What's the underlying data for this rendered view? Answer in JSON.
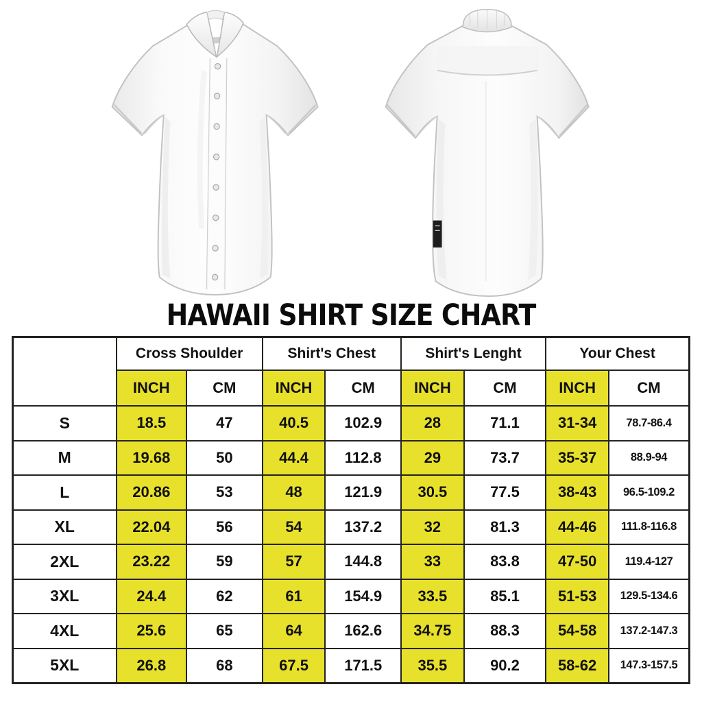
{
  "title": "HAWAII SHIRT SIZE CHART",
  "shirts": {
    "front": "white-short-sleeve-shirt-front-view",
    "back": "white-short-sleeve-shirt-back-view"
  },
  "colors": {
    "highlight_yellow": "#e8e12b",
    "grid_border": "#24231f",
    "text": "#111111"
  },
  "chart_data": {
    "type": "table",
    "title": "HAWAII SHIRT SIZE CHART",
    "column_groups": [
      "Cross Shoulder",
      "Shirt's Chest",
      "Shirt's Lenght",
      "Your Chest"
    ],
    "unit_headers": [
      "INCH",
      "CM"
    ],
    "row_labels": [
      "S",
      "M",
      "L",
      "XL",
      "2XL",
      "3XL",
      "4XL",
      "5XL"
    ],
    "rows": [
      [
        "18.5",
        "47",
        "40.5",
        "102.9",
        "28",
        "71.1",
        "31-34",
        "78.7-86.4"
      ],
      [
        "19.68",
        "50",
        "44.4",
        "112.8",
        "29",
        "73.7",
        "35-37",
        "88.9-94"
      ],
      [
        "20.86",
        "53",
        "48",
        "121.9",
        "30.5",
        "77.5",
        "38-43",
        "96.5-109.2"
      ],
      [
        "22.04",
        "56",
        "54",
        "137.2",
        "32",
        "81.3",
        "44-46",
        "111.8-116.8"
      ],
      [
        "23.22",
        "59",
        "57",
        "144.8",
        "33",
        "83.8",
        "47-50",
        "119.4-127"
      ],
      [
        "24.4",
        "62",
        "61",
        "154.9",
        "33.5",
        "85.1",
        "51-53",
        "129.5-134.6"
      ],
      [
        "25.6",
        "65",
        "64",
        "162.6",
        "34.75",
        "88.3",
        "54-58",
        "137.2-147.3"
      ],
      [
        "26.8",
        "68",
        "67.5",
        "171.5",
        "35.5",
        "90.2",
        "58-62",
        "147.3-157.5"
      ]
    ]
  },
  "table": {
    "groups": [
      {
        "label": "Cross Shoulder"
      },
      {
        "label": "Shirt's Chest"
      },
      {
        "label": "Shirt's Lenght"
      },
      {
        "label": "Your Chest"
      }
    ],
    "unit_headers": {
      "inch": "INCH",
      "cm": "CM"
    },
    "rows": [
      {
        "size": "S",
        "cells": [
          "18.5",
          "47",
          "40.5",
          "102.9",
          "28",
          "71.1",
          "31-34",
          "78.7-86.4"
        ]
      },
      {
        "size": "M",
        "cells": [
          "19.68",
          "50",
          "44.4",
          "112.8",
          "29",
          "73.7",
          "35-37",
          "88.9-94"
        ]
      },
      {
        "size": "L",
        "cells": [
          "20.86",
          "53",
          "48",
          "121.9",
          "30.5",
          "77.5",
          "38-43",
          "96.5-109.2"
        ]
      },
      {
        "size": "XL",
        "cells": [
          "22.04",
          "56",
          "54",
          "137.2",
          "32",
          "81.3",
          "44-46",
          "111.8-116.8"
        ]
      },
      {
        "size": "2XL",
        "cells": [
          "23.22",
          "59",
          "57",
          "144.8",
          "33",
          "83.8",
          "47-50",
          "119.4-127"
        ]
      },
      {
        "size": "3XL",
        "cells": [
          "24.4",
          "62",
          "61",
          "154.9",
          "33.5",
          "85.1",
          "51-53",
          "129.5-134.6"
        ]
      },
      {
        "size": "4XL",
        "cells": [
          "25.6",
          "65",
          "64",
          "162.6",
          "34.75",
          "88.3",
          "54-58",
          "137.2-147.3"
        ]
      },
      {
        "size": "5XL",
        "cells": [
          "26.8",
          "68",
          "67.5",
          "171.5",
          "35.5",
          "90.2",
          "58-62",
          "147.3-157.5"
        ]
      }
    ]
  }
}
